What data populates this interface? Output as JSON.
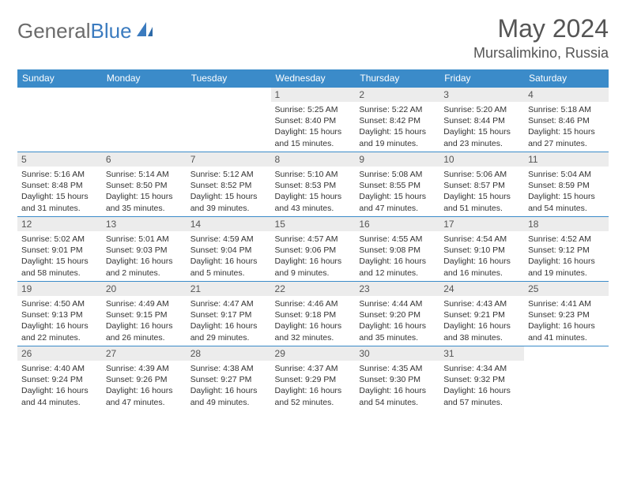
{
  "brand": {
    "part1": "General",
    "part2": "Blue"
  },
  "title": "May 2024",
  "location": "Mursalimkino, Russia",
  "colors": {
    "header_bg": "#3b8bc9",
    "header_text": "#ffffff",
    "daynum_bg": "#ececec",
    "border": "#3b8bc9",
    "title_color": "#555555",
    "logo_gray": "#6b6b6b",
    "logo_blue": "#3b7bbf"
  },
  "weekdays": [
    "Sunday",
    "Monday",
    "Tuesday",
    "Wednesday",
    "Thursday",
    "Friday",
    "Saturday"
  ],
  "weeks": [
    [
      null,
      null,
      null,
      {
        "n": "1",
        "l1": "Sunrise: 5:25 AM",
        "l2": "Sunset: 8:40 PM",
        "l3": "Daylight: 15 hours",
        "l4": "and 15 minutes."
      },
      {
        "n": "2",
        "l1": "Sunrise: 5:22 AM",
        "l2": "Sunset: 8:42 PM",
        "l3": "Daylight: 15 hours",
        "l4": "and 19 minutes."
      },
      {
        "n": "3",
        "l1": "Sunrise: 5:20 AM",
        "l2": "Sunset: 8:44 PM",
        "l3": "Daylight: 15 hours",
        "l4": "and 23 minutes."
      },
      {
        "n": "4",
        "l1": "Sunrise: 5:18 AM",
        "l2": "Sunset: 8:46 PM",
        "l3": "Daylight: 15 hours",
        "l4": "and 27 minutes."
      }
    ],
    [
      {
        "n": "5",
        "l1": "Sunrise: 5:16 AM",
        "l2": "Sunset: 8:48 PM",
        "l3": "Daylight: 15 hours",
        "l4": "and 31 minutes."
      },
      {
        "n": "6",
        "l1": "Sunrise: 5:14 AM",
        "l2": "Sunset: 8:50 PM",
        "l3": "Daylight: 15 hours",
        "l4": "and 35 minutes."
      },
      {
        "n": "7",
        "l1": "Sunrise: 5:12 AM",
        "l2": "Sunset: 8:52 PM",
        "l3": "Daylight: 15 hours",
        "l4": "and 39 minutes."
      },
      {
        "n": "8",
        "l1": "Sunrise: 5:10 AM",
        "l2": "Sunset: 8:53 PM",
        "l3": "Daylight: 15 hours",
        "l4": "and 43 minutes."
      },
      {
        "n": "9",
        "l1": "Sunrise: 5:08 AM",
        "l2": "Sunset: 8:55 PM",
        "l3": "Daylight: 15 hours",
        "l4": "and 47 minutes."
      },
      {
        "n": "10",
        "l1": "Sunrise: 5:06 AM",
        "l2": "Sunset: 8:57 PM",
        "l3": "Daylight: 15 hours",
        "l4": "and 51 minutes."
      },
      {
        "n": "11",
        "l1": "Sunrise: 5:04 AM",
        "l2": "Sunset: 8:59 PM",
        "l3": "Daylight: 15 hours",
        "l4": "and 54 minutes."
      }
    ],
    [
      {
        "n": "12",
        "l1": "Sunrise: 5:02 AM",
        "l2": "Sunset: 9:01 PM",
        "l3": "Daylight: 15 hours",
        "l4": "and 58 minutes."
      },
      {
        "n": "13",
        "l1": "Sunrise: 5:01 AM",
        "l2": "Sunset: 9:03 PM",
        "l3": "Daylight: 16 hours",
        "l4": "and 2 minutes."
      },
      {
        "n": "14",
        "l1": "Sunrise: 4:59 AM",
        "l2": "Sunset: 9:04 PM",
        "l3": "Daylight: 16 hours",
        "l4": "and 5 minutes."
      },
      {
        "n": "15",
        "l1": "Sunrise: 4:57 AM",
        "l2": "Sunset: 9:06 PM",
        "l3": "Daylight: 16 hours",
        "l4": "and 9 minutes."
      },
      {
        "n": "16",
        "l1": "Sunrise: 4:55 AM",
        "l2": "Sunset: 9:08 PM",
        "l3": "Daylight: 16 hours",
        "l4": "and 12 minutes."
      },
      {
        "n": "17",
        "l1": "Sunrise: 4:54 AM",
        "l2": "Sunset: 9:10 PM",
        "l3": "Daylight: 16 hours",
        "l4": "and 16 minutes."
      },
      {
        "n": "18",
        "l1": "Sunrise: 4:52 AM",
        "l2": "Sunset: 9:12 PM",
        "l3": "Daylight: 16 hours",
        "l4": "and 19 minutes."
      }
    ],
    [
      {
        "n": "19",
        "l1": "Sunrise: 4:50 AM",
        "l2": "Sunset: 9:13 PM",
        "l3": "Daylight: 16 hours",
        "l4": "and 22 minutes."
      },
      {
        "n": "20",
        "l1": "Sunrise: 4:49 AM",
        "l2": "Sunset: 9:15 PM",
        "l3": "Daylight: 16 hours",
        "l4": "and 26 minutes."
      },
      {
        "n": "21",
        "l1": "Sunrise: 4:47 AM",
        "l2": "Sunset: 9:17 PM",
        "l3": "Daylight: 16 hours",
        "l4": "and 29 minutes."
      },
      {
        "n": "22",
        "l1": "Sunrise: 4:46 AM",
        "l2": "Sunset: 9:18 PM",
        "l3": "Daylight: 16 hours",
        "l4": "and 32 minutes."
      },
      {
        "n": "23",
        "l1": "Sunrise: 4:44 AM",
        "l2": "Sunset: 9:20 PM",
        "l3": "Daylight: 16 hours",
        "l4": "and 35 minutes."
      },
      {
        "n": "24",
        "l1": "Sunrise: 4:43 AM",
        "l2": "Sunset: 9:21 PM",
        "l3": "Daylight: 16 hours",
        "l4": "and 38 minutes."
      },
      {
        "n": "25",
        "l1": "Sunrise: 4:41 AM",
        "l2": "Sunset: 9:23 PM",
        "l3": "Daylight: 16 hours",
        "l4": "and 41 minutes."
      }
    ],
    [
      {
        "n": "26",
        "l1": "Sunrise: 4:40 AM",
        "l2": "Sunset: 9:24 PM",
        "l3": "Daylight: 16 hours",
        "l4": "and 44 minutes."
      },
      {
        "n": "27",
        "l1": "Sunrise: 4:39 AM",
        "l2": "Sunset: 9:26 PM",
        "l3": "Daylight: 16 hours",
        "l4": "and 47 minutes."
      },
      {
        "n": "28",
        "l1": "Sunrise: 4:38 AM",
        "l2": "Sunset: 9:27 PM",
        "l3": "Daylight: 16 hours",
        "l4": "and 49 minutes."
      },
      {
        "n": "29",
        "l1": "Sunrise: 4:37 AM",
        "l2": "Sunset: 9:29 PM",
        "l3": "Daylight: 16 hours",
        "l4": "and 52 minutes."
      },
      {
        "n": "30",
        "l1": "Sunrise: 4:35 AM",
        "l2": "Sunset: 9:30 PM",
        "l3": "Daylight: 16 hours",
        "l4": "and 54 minutes."
      },
      {
        "n": "31",
        "l1": "Sunrise: 4:34 AM",
        "l2": "Sunset: 9:32 PM",
        "l3": "Daylight: 16 hours",
        "l4": "and 57 minutes."
      },
      null
    ]
  ]
}
